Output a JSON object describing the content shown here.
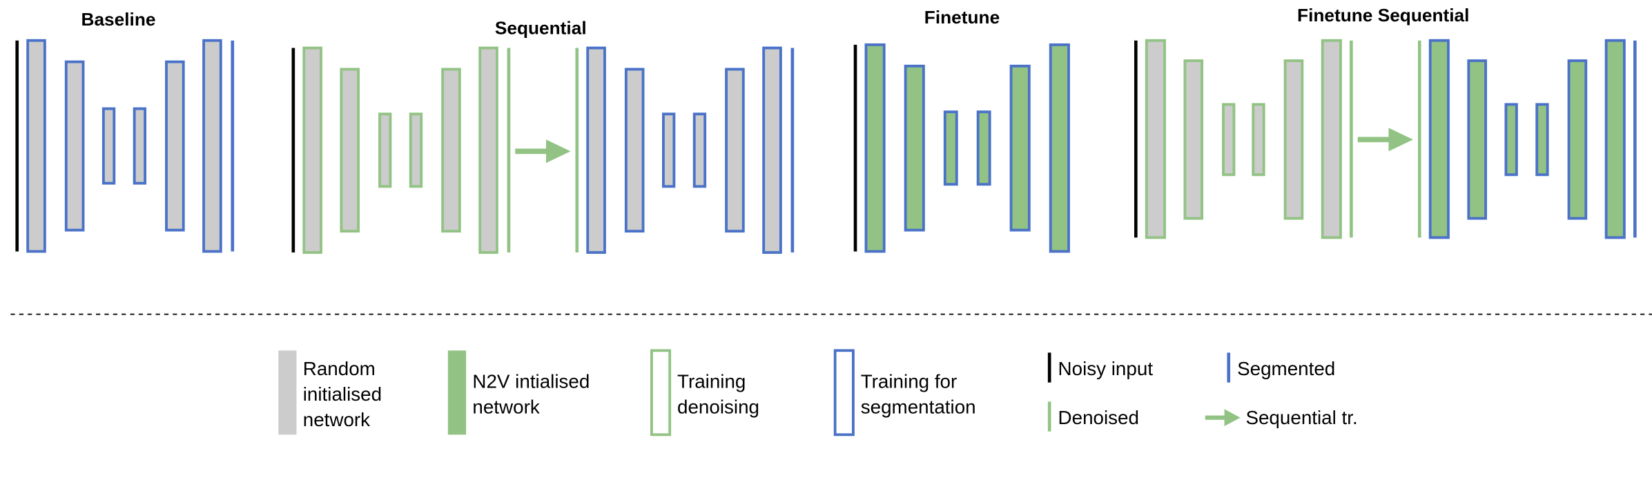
{
  "colors": {
    "random_fill": "#cccccc",
    "n2v_fill": "#92c384",
    "denoise_stroke": "#92c384",
    "segment_stroke": "#4a72c8",
    "noisy_input": "#000000",
    "arrow": "#92c384"
  },
  "panels": [
    {
      "key": "baseline",
      "title": "Baseline",
      "networks": [
        {
          "fill": "random",
          "stroke": "segment"
        }
      ],
      "arrow": false,
      "input": "noisy",
      "output": "segmented"
    },
    {
      "key": "sequential",
      "title": "Sequential",
      "networks": [
        {
          "fill": "random",
          "stroke": "denoise"
        },
        {
          "fill": "random",
          "stroke": "segment"
        }
      ],
      "arrow": true,
      "input": "noisy",
      "intermediate": "denoised",
      "output": "segmented"
    },
    {
      "key": "finetune",
      "title": "Finetune",
      "networks": [
        {
          "fill": "n2v",
          "stroke": "segment"
        }
      ],
      "arrow": false,
      "input": "noisy",
      "output": "segmented"
    },
    {
      "key": "finetune_sequential",
      "title": "Finetune Sequential",
      "networks": [
        {
          "fill": "random",
          "stroke": "denoise"
        },
        {
          "fill": "n2v",
          "stroke": "segment"
        }
      ],
      "arrow": true,
      "input": "noisy",
      "intermediate": "denoised",
      "output": "segmented"
    }
  ],
  "legend": {
    "random": [
      "Random",
      "initialised",
      "network"
    ],
    "n2v": [
      "N2V intialised",
      "network"
    ],
    "training_denoising": [
      "Training",
      "denoising"
    ],
    "training_segmentation": [
      "Training for",
      "segmentation"
    ],
    "noisy_input": "Noisy input",
    "segmented": "Segmented",
    "denoised": "Denoised",
    "sequential": "Sequential tr."
  }
}
